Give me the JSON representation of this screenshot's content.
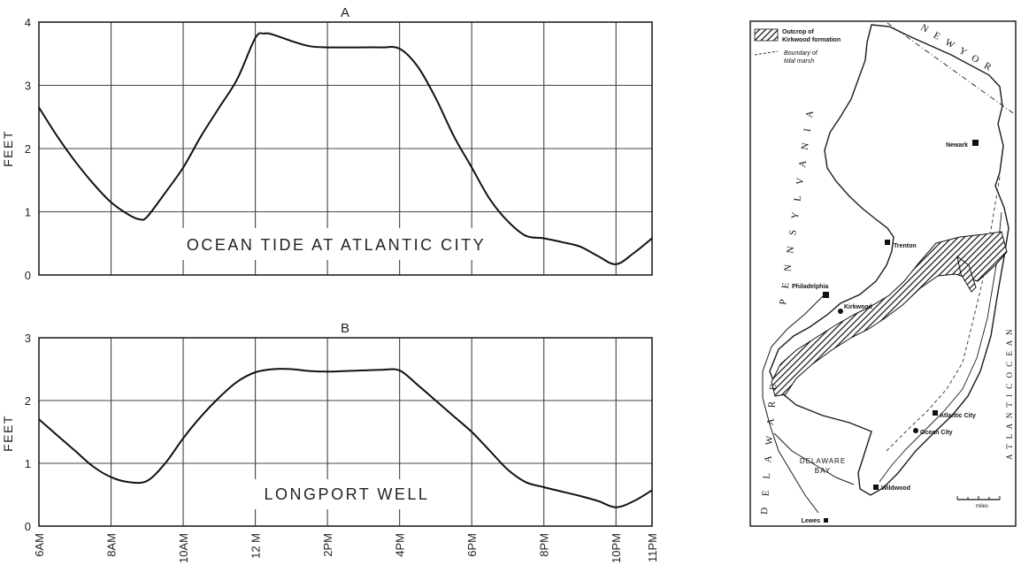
{
  "chart_data": [
    {
      "type": "line",
      "title": "A",
      "annotation": "OCEAN TIDE AT ATLANTIC CITY",
      "ylabel": "FEET",
      "xlabel": "",
      "ylim": [
        0,
        4
      ],
      "yticks": [
        0,
        1,
        2,
        3,
        4
      ],
      "xlim": [
        6,
        23
      ],
      "xticks": [
        6,
        8,
        10,
        12,
        14,
        16,
        18,
        20,
        22,
        23
      ],
      "grid": true,
      "series": [
        {
          "x": [
            6,
            6.5,
            7,
            7.5,
            8,
            8.5,
            8.8,
            9,
            9.5,
            10,
            10.5,
            11,
            11.5,
            12,
            12.25,
            12.5,
            13,
            13.5,
            14,
            14.5,
            15,
            15.5,
            16,
            16.5,
            17,
            17.5,
            18,
            18.5,
            19,
            19.5,
            20,
            20.5,
            21,
            21.5,
            22,
            22.5,
            23
          ],
          "y": [
            2.65,
            2.2,
            1.8,
            1.45,
            1.15,
            0.95,
            0.88,
            0.92,
            1.3,
            1.7,
            2.2,
            2.65,
            3.1,
            3.75,
            3.82,
            3.8,
            3.7,
            3.62,
            3.6,
            3.6,
            3.6,
            3.6,
            3.58,
            3.3,
            2.8,
            2.2,
            1.7,
            1.2,
            0.85,
            0.62,
            0.58,
            0.52,
            0.45,
            0.3,
            0.17,
            0.35,
            0.58
          ]
        }
      ]
    },
    {
      "type": "line",
      "title": "B",
      "annotation": "LONGPORT WELL",
      "ylabel": "FEET",
      "xlabel": "",
      "ylim": [
        0,
        3
      ],
      "yticks": [
        0,
        1,
        2,
        3
      ],
      "xlim": [
        6,
        23
      ],
      "xticks": [
        6,
        8,
        10,
        12,
        14,
        16,
        18,
        20,
        22,
        23
      ],
      "xticklabels": [
        "6AM",
        "8AM",
        "10AM",
        "12 M",
        "2PM",
        "4PM",
        "6PM",
        "8PM",
        "10PM",
        "11PM"
      ],
      "grid": true,
      "series": [
        {
          "x": [
            6,
            6.5,
            7,
            7.5,
            8,
            8.5,
            9,
            9.5,
            10,
            10.5,
            11,
            11.5,
            12,
            12.5,
            13,
            13.5,
            14,
            14.5,
            15,
            15.5,
            16,
            16.5,
            17,
            17.5,
            18,
            18.5,
            19,
            19.5,
            20,
            20.5,
            21,
            21.5,
            22,
            22.5,
            23
          ],
          "y": [
            1.7,
            1.45,
            1.2,
            0.95,
            0.78,
            0.7,
            0.72,
            1.0,
            1.4,
            1.75,
            2.05,
            2.3,
            2.45,
            2.5,
            2.5,
            2.47,
            2.46,
            2.47,
            2.48,
            2.49,
            2.48,
            2.25,
            2.0,
            1.75,
            1.5,
            1.2,
            0.9,
            0.7,
            0.62,
            0.55,
            0.48,
            0.4,
            0.3,
            0.4,
            0.57
          ]
        }
      ]
    }
  ],
  "map": {
    "legend": {
      "outcrop_line1": "Outcrop of",
      "outcrop_line2": "Kirkwood formation",
      "boundary_line1": "Boundary of",
      "boundary_line2": "tidal marsh"
    },
    "states": {
      "new_york": "N E W   Y O R",
      "pennsylvania": "P E N N S Y L V A N I A",
      "delaware": "D E L A W A R E",
      "atlantic_ocean": "A T L A N T I C   O C E A N"
    },
    "water": {
      "delaware_bay_1": "DELAWARE",
      "delaware_bay_2": "BAY"
    },
    "places": {
      "newark": "Newark",
      "trenton": "Trenton",
      "philadelphia": "Philadelphia",
      "kirkwood": "Kirkwood",
      "atlantic_city": "Atlantic City",
      "ocean_city": "Ocean City",
      "wildwood": "Wildwood",
      "lewes": "Lewes"
    },
    "scale_label": "miles"
  }
}
